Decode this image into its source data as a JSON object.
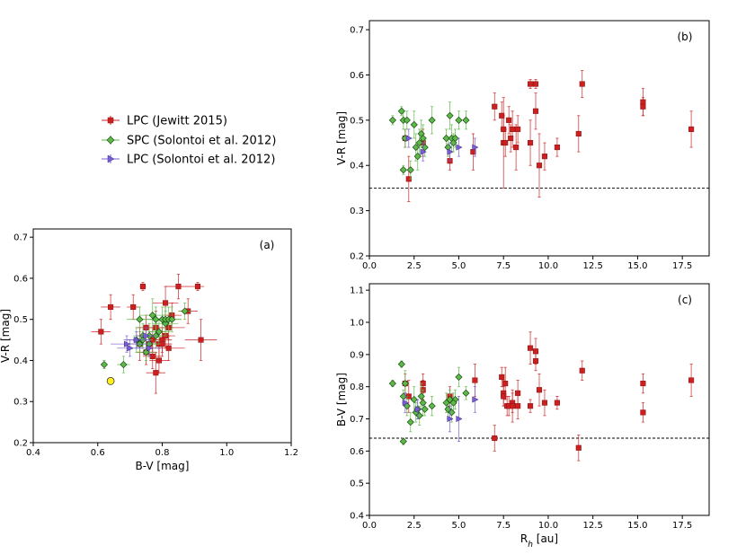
{
  "colors": {
    "lpc_jewitt": "#cc2020",
    "spc_solontoi": "#5fb84a",
    "lpc_solontoi": "#7a5cd6",
    "sun": "#ffee22"
  },
  "legend": {
    "entries": [
      {
        "label": "LPC (Jewitt 2015)",
        "marker": "square",
        "series": "lpc_jewitt"
      },
      {
        "label": "SPC (Solontoi et al. 2012)",
        "marker": "diamond",
        "series": "spc_solontoi"
      },
      {
        "label": "LPC (Solontoi et al. 2012)",
        "marker": "triangle",
        "series": "lpc_solontoi"
      }
    ]
  },
  "chart_data": [
    {
      "id": "a",
      "type": "scatter",
      "panel_label": "(a)",
      "xlabel": "B-V [mag]",
      "ylabel": "V-R [mag]",
      "xlim": [
        0.4,
        1.2
      ],
      "ylim": [
        0.2,
        0.72
      ],
      "xticks": [
        "0.4",
        "0.6",
        "0.8",
        "1.0",
        "1.2"
      ],
      "yticks": [
        "0.2",
        "0.3",
        "0.4",
        "0.5",
        "0.6",
        "0.7"
      ],
      "reference_point": {
        "x": 0.64,
        "y": 0.35
      },
      "series": [
        {
          "key": "lpc_jewitt",
          "marker": "square",
          "points": [
            [
              0.61,
              0.47
            ],
            [
              0.64,
              0.53
            ],
            [
              0.71,
              0.53
            ],
            [
              0.74,
              0.58
            ],
            [
              0.73,
              0.44
            ],
            [
              0.75,
              0.48
            ],
            [
              0.76,
              0.44
            ],
            [
              0.75,
              0.42
            ],
            [
              0.77,
              0.45
            ],
            [
              0.78,
              0.48
            ],
            [
              0.77,
              0.41
            ],
            [
              0.79,
              0.44
            ],
            [
              0.79,
              0.4
            ],
            [
              0.78,
              0.37
            ],
            [
              0.8,
              0.45
            ],
            [
              0.8,
              0.44
            ],
            [
              0.81,
              0.54
            ],
            [
              0.81,
              0.46
            ],
            [
              0.82,
              0.48
            ],
            [
              0.82,
              0.43
            ],
            [
              0.83,
              0.51
            ],
            [
              0.85,
              0.58
            ],
            [
              0.88,
              0.52
            ],
            [
              0.91,
              0.58
            ],
            [
              0.92,
              0.45
            ]
          ],
          "xerr": [
            0.03,
            0.03,
            0.02,
            0.01,
            0.03,
            0.03,
            0.03,
            0.03,
            0.03,
            0.03,
            0.03,
            0.04,
            0.03,
            0.03,
            0.03,
            0.03,
            0.04,
            0.03,
            0.05,
            0.05,
            0.03,
            0.04,
            0.03,
            0.02,
            0.05
          ],
          "yerr": [
            0.03,
            0.03,
            0.03,
            0.01,
            0.04,
            0.03,
            0.03,
            0.03,
            0.03,
            0.04,
            0.03,
            0.03,
            0.03,
            0.05,
            0.03,
            0.03,
            0.04,
            0.03,
            0.03,
            0.03,
            0.03,
            0.03,
            0.03,
            0.01,
            0.05
          ]
        },
        {
          "key": "spc_solontoi",
          "marker": "diamond",
          "points": [
            [
              0.62,
              0.39
            ],
            [
              0.68,
              0.39
            ],
            [
              0.73,
              0.5
            ],
            [
              0.74,
              0.46
            ],
            [
              0.75,
              0.42
            ],
            [
              0.76,
              0.46
            ],
            [
              0.76,
              0.44
            ],
            [
              0.77,
              0.51
            ],
            [
              0.78,
              0.5
            ],
            [
              0.79,
              0.47
            ],
            [
              0.8,
              0.5
            ],
            [
              0.81,
              0.49
            ],
            [
              0.81,
              0.5
            ],
            [
              0.82,
              0.5
            ],
            [
              0.83,
              0.5
            ],
            [
              0.87,
              0.52
            ],
            [
              0.72,
              0.45
            ],
            [
              0.74,
              0.45
            ],
            [
              0.78,
              0.46
            ],
            [
              0.73,
              0.44
            ]
          ],
          "xerr": [
            0.01,
            0.02,
            0.04,
            0.03,
            0.03,
            0.04,
            0.03,
            0.04,
            0.04,
            0.03,
            0.04,
            0.04,
            0.03,
            0.04,
            0.03,
            0.02,
            0.03,
            0.03,
            0.03,
            0.03
          ],
          "yerr": [
            0.01,
            0.02,
            0.03,
            0.03,
            0.02,
            0.03,
            0.03,
            0.04,
            0.03,
            0.03,
            0.03,
            0.03,
            0.03,
            0.03,
            0.03,
            0.02,
            0.03,
            0.02,
            0.03,
            0.02
          ]
        },
        {
          "key": "lpc_solontoi",
          "marker": "triangle",
          "points": [
            [
              0.69,
              0.44
            ],
            [
              0.7,
              0.43
            ],
            [
              0.72,
              0.45
            ],
            [
              0.75,
              0.46
            ],
            [
              0.76,
              0.43
            ]
          ],
          "xerr": [
            0.05,
            0.04,
            0.04,
            0.03,
            0.04
          ],
          "yerr": [
            0.02,
            0.02,
            0.02,
            0.02,
            0.02
          ]
        }
      ]
    },
    {
      "id": "b",
      "type": "scatter",
      "panel_label": "(b)",
      "xlabel": "",
      "ylabel": "V-R [mag]",
      "xlim": [
        0.0,
        19.0
      ],
      "ylim": [
        0.2,
        0.72
      ],
      "xticks": [
        "0.0",
        "2.5",
        "5.0",
        "7.5",
        "10.0",
        "12.5",
        "15.0",
        "17.5"
      ],
      "yticks": [
        "0.2",
        "0.3",
        "0.4",
        "0.5",
        "0.6",
        "0.7"
      ],
      "reference_line": 0.35,
      "series": [
        {
          "key": "lpc_jewitt",
          "marker": "square",
          "points": [
            [
              2.0,
              0.46
            ],
            [
              2.2,
              0.37
            ],
            [
              3.0,
              0.45
            ],
            [
              4.5,
              0.41
            ],
            [
              5.8,
              0.43
            ],
            [
              7.0,
              0.53
            ],
            [
              7.4,
              0.51
            ],
            [
              7.5,
              0.48
            ],
            [
              7.5,
              0.45
            ],
            [
              7.6,
              0.45
            ],
            [
              7.8,
              0.5
            ],
            [
              7.9,
              0.46
            ],
            [
              8.0,
              0.48
            ],
            [
              8.2,
              0.44
            ],
            [
              8.3,
              0.48
            ],
            [
              9.0,
              0.58
            ],
            [
              9.0,
              0.45
            ],
            [
              9.3,
              0.58
            ],
            [
              9.3,
              0.52
            ],
            [
              9.5,
              0.4
            ],
            [
              9.8,
              0.42
            ],
            [
              10.5,
              0.44
            ],
            [
              11.7,
              0.47
            ],
            [
              11.9,
              0.58
            ],
            [
              15.3,
              0.54
            ],
            [
              15.3,
              0.53
            ],
            [
              18.0,
              0.48
            ]
          ],
          "yerr": [
            0.02,
            0.05,
            0.03,
            0.02,
            0.04,
            0.03,
            0.03,
            0.03,
            0.1,
            0.03,
            0.03,
            0.03,
            0.04,
            0.05,
            0.03,
            0.01,
            0.05,
            0.01,
            0.04,
            0.07,
            0.03,
            0.02,
            0.04,
            0.03,
            0.03,
            0.02,
            0.04
          ]
        },
        {
          "key": "spc_solontoi",
          "marker": "diamond",
          "points": [
            [
              1.3,
              0.5
            ],
            [
              1.8,
              0.52
            ],
            [
              1.9,
              0.5
            ],
            [
              1.9,
              0.39
            ],
            [
              2.0,
              0.46
            ],
            [
              2.1,
              0.5
            ],
            [
              2.3,
              0.39
            ],
            [
              2.5,
              0.49
            ],
            [
              2.6,
              0.44
            ],
            [
              2.7,
              0.42
            ],
            [
              2.8,
              0.45
            ],
            [
              2.9,
              0.47
            ],
            [
              3.0,
              0.46
            ],
            [
              3.1,
              0.44
            ],
            [
              3.5,
              0.5
            ],
            [
              4.3,
              0.46
            ],
            [
              4.4,
              0.44
            ],
            [
              4.5,
              0.51
            ],
            [
              4.6,
              0.46
            ],
            [
              4.8,
              0.46
            ],
            [
              5.0,
              0.5
            ],
            [
              5.4,
              0.5
            ],
            [
              4.7,
              0.45
            ]
          ],
          "yerr": [
            0.01,
            0.01,
            0.02,
            0.01,
            0.02,
            0.02,
            0.02,
            0.03,
            0.03,
            0.03,
            0.03,
            0.03,
            0.03,
            0.02,
            0.03,
            0.02,
            0.02,
            0.03,
            0.03,
            0.02,
            0.02,
            0.02,
            0.02
          ]
        },
        {
          "key": "lpc_solontoi",
          "marker": "triangle",
          "points": [
            [
              2.2,
              0.46
            ],
            [
              3.0,
              0.43
            ],
            [
              4.5,
              0.43
            ],
            [
              5.0,
              0.44
            ],
            [
              5.9,
              0.44
            ]
          ],
          "yerr": [
            0.02,
            0.02,
            0.02,
            0.02,
            0.02
          ]
        }
      ]
    },
    {
      "id": "c",
      "type": "scatter",
      "panel_label": "(c)",
      "xlabel": "R_h [au]",
      "ylabel": "B-V [mag]",
      "xlim": [
        0.0,
        19.0
      ],
      "ylim": [
        0.4,
        1.12
      ],
      "xticks": [
        "0.0",
        "2.5",
        "5.0",
        "7.5",
        "10.0",
        "12.5",
        "15.0",
        "17.5"
      ],
      "yticks": [
        "0.4",
        "0.5",
        "0.6",
        "0.7",
        "0.8",
        "0.9",
        "1.0",
        "1.1"
      ],
      "reference_line": 0.64,
      "series": [
        {
          "key": "lpc_jewitt",
          "marker": "square",
          "points": [
            [
              2.0,
              0.81
            ],
            [
              2.2,
              0.77
            ],
            [
              3.0,
              0.81
            ],
            [
              3.0,
              0.79
            ],
            [
              4.5,
              0.77
            ],
            [
              5.9,
              0.82
            ],
            [
              7.0,
              0.64
            ],
            [
              7.4,
              0.83
            ],
            [
              7.5,
              0.78
            ],
            [
              7.5,
              0.77
            ],
            [
              7.6,
              0.81
            ],
            [
              7.7,
              0.74
            ],
            [
              7.8,
              0.74
            ],
            [
              8.0,
              0.75
            ],
            [
              8.0,
              0.74
            ],
            [
              8.3,
              0.78
            ],
            [
              8.3,
              0.74
            ],
            [
              9.0,
              0.92
            ],
            [
              9.0,
              0.74
            ],
            [
              9.3,
              0.91
            ],
            [
              9.3,
              0.88
            ],
            [
              9.5,
              0.79
            ],
            [
              9.8,
              0.75
            ],
            [
              10.5,
              0.75
            ],
            [
              11.7,
              0.61
            ],
            [
              11.9,
              0.85
            ],
            [
              15.3,
              0.81
            ],
            [
              15.3,
              0.72
            ],
            [
              18.0,
              0.82
            ]
          ],
          "yerr": [
            0.03,
            0.05,
            0.03,
            0.03,
            0.03,
            0.05,
            0.04,
            0.03,
            0.04,
            0.03,
            0.05,
            0.03,
            0.03,
            0.03,
            0.05,
            0.04,
            0.04,
            0.05,
            0.02,
            0.04,
            0.03,
            0.05,
            0.04,
            0.02,
            0.04,
            0.03,
            0.03,
            0.03,
            0.05
          ]
        },
        {
          "key": "spc_solontoi",
          "marker": "diamond",
          "points": [
            [
              1.3,
              0.81
            ],
            [
              1.8,
              0.87
            ],
            [
              1.9,
              0.77
            ],
            [
              1.9,
              0.63
            ],
            [
              2.0,
              0.81
            ],
            [
              2.1,
              0.74
            ],
            [
              2.3,
              0.69
            ],
            [
              2.5,
              0.76
            ],
            [
              2.6,
              0.72
            ],
            [
              2.7,
              0.73
            ],
            [
              2.8,
              0.71
            ],
            [
              2.9,
              0.77
            ],
            [
              3.0,
              0.75
            ],
            [
              3.1,
              0.73
            ],
            [
              3.5,
              0.74
            ],
            [
              4.3,
              0.75
            ],
            [
              4.4,
              0.73
            ],
            [
              4.5,
              0.76
            ],
            [
              4.6,
              0.72
            ],
            [
              4.8,
              0.76
            ],
            [
              5.0,
              0.83
            ],
            [
              5.4,
              0.78
            ],
            [
              4.7,
              0.75
            ]
          ],
          "yerr": [
            0.01,
            0.01,
            0.02,
            0.01,
            0.04,
            0.03,
            0.03,
            0.04,
            0.03,
            0.03,
            0.03,
            0.04,
            0.04,
            0.02,
            0.03,
            0.03,
            0.03,
            0.03,
            0.03,
            0.03,
            0.03,
            0.02,
            0.03
          ]
        },
        {
          "key": "lpc_solontoi",
          "marker": "triangle",
          "points": [
            [
              2.0,
              0.75
            ],
            [
              2.7,
              0.73
            ],
            [
              4.5,
              0.7
            ],
            [
              5.0,
              0.7
            ],
            [
              5.9,
              0.76
            ]
          ],
          "yerr": [
            0.03,
            0.03,
            0.04,
            0.07,
            0.04
          ]
        }
      ]
    }
  ]
}
